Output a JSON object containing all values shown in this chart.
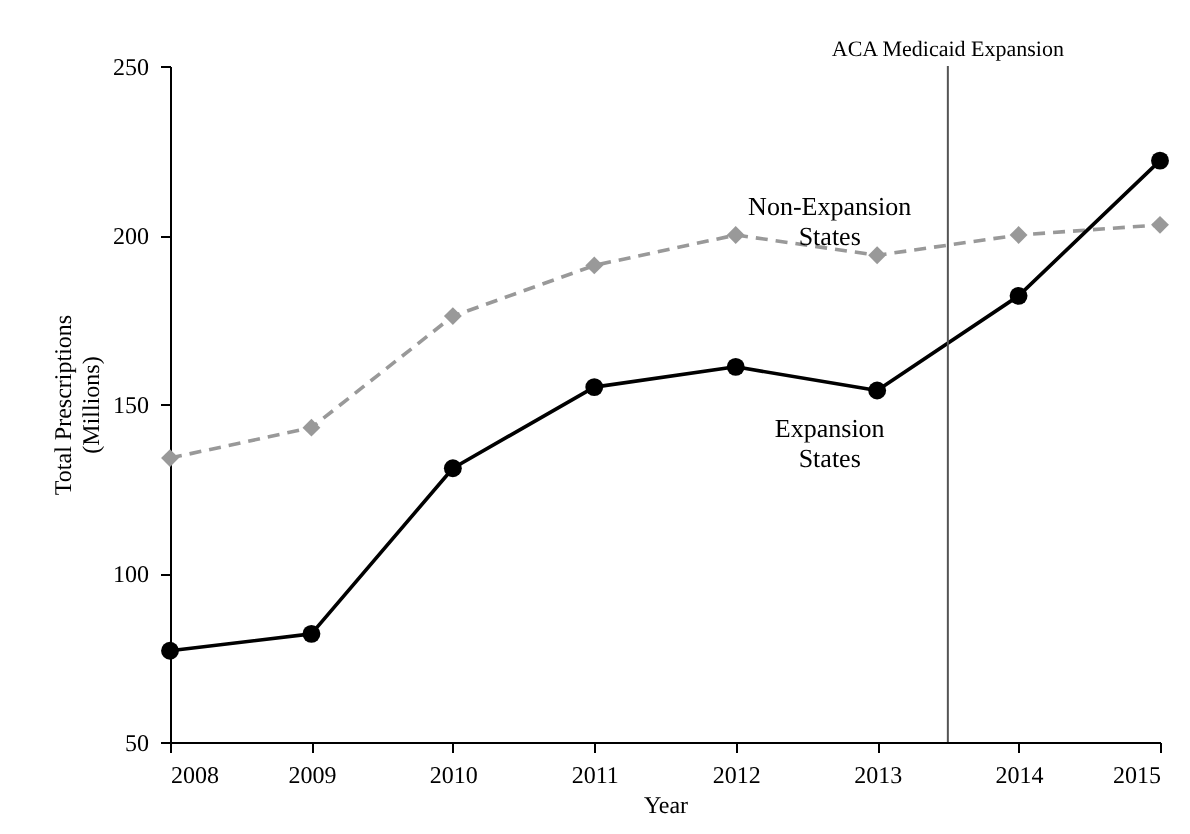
{
  "chart_data": {
    "type": "line",
    "xlabel": "Year",
    "ylabel": "Total Prescriptions\n(Millions)",
    "x": [
      2008,
      2009,
      2010,
      2011,
      2012,
      2013,
      2014,
      2015
    ],
    "series": [
      {
        "name": "Non-Expansion\nStates",
        "color": "#999999",
        "line_style": "dashed",
        "marker": "diamond",
        "values": [
          134,
          143,
          176,
          191,
          200,
          194,
          200,
          203
        ]
      },
      {
        "name": "Expansion\nStates",
        "color": "#000000",
        "line_style": "solid",
        "marker": "circle",
        "values": [
          77,
          82,
          131,
          155,
          161,
          154,
          182,
          222
        ]
      }
    ],
    "xlim": [
      2008,
      2015
    ],
    "xticks": [
      2008,
      2009,
      2010,
      2011,
      2012,
      2013,
      2014,
      2015
    ],
    "ylim": [
      50,
      250
    ],
    "yticks": [
      50,
      100,
      150,
      200,
      250
    ],
    "grid": false,
    "ref_lines": [
      {
        "axis": "x",
        "value": 2013.5,
        "label": "ACA Medicaid Expansion",
        "color": "#555555"
      }
    ]
  }
}
